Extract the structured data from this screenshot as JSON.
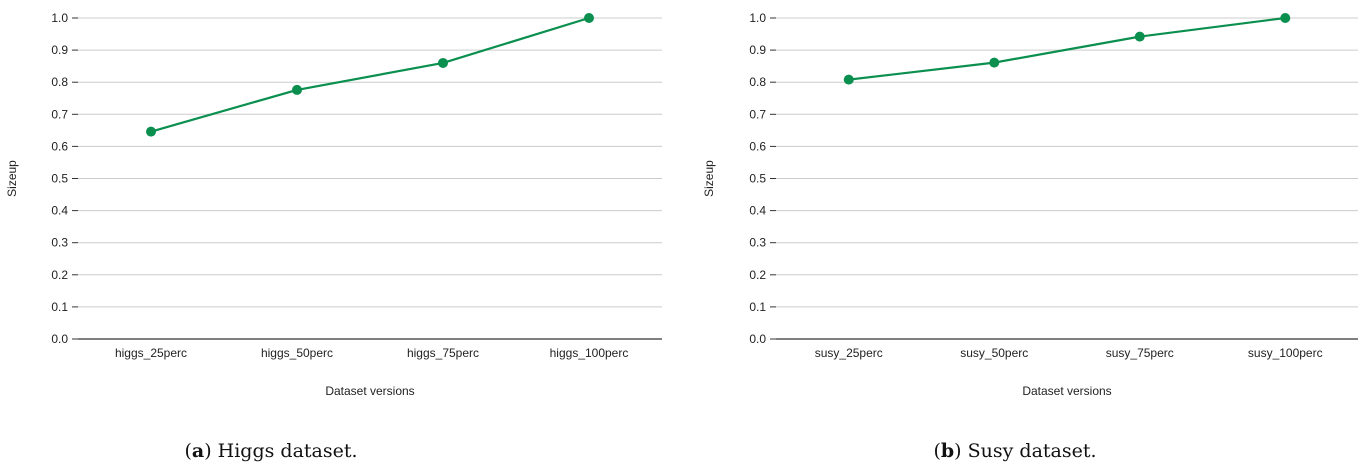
{
  "chart_data": [
    {
      "type": "line",
      "title": "",
      "xlabel": "Dataset versions",
      "ylabel": "Sizeup",
      "categories": [
        "higgs_25perc",
        "higgs_50perc",
        "higgs_75perc",
        "higgs_100perc"
      ],
      "series": [
        {
          "values": [
            0.646,
            0.776,
            0.86,
            1.0
          ]
        }
      ],
      "ylim": [
        0,
        1.0
      ],
      "yticks": [
        "0.0",
        "0.1",
        "0.2",
        "0.3",
        "0.4",
        "0.5",
        "0.6",
        "0.7",
        "0.8",
        "0.9",
        "1.0"
      ],
      "grid": true,
      "color": "#0a8f4f",
      "caption": {
        "open": "(",
        "letter": "a",
        "close": ")",
        "text": " Higgs dataset."
      }
    },
    {
      "type": "line",
      "title": "",
      "xlabel": "Dataset versions",
      "ylabel": "Sizeup",
      "categories": [
        "susy_25perc",
        "susy_50perc",
        "susy_75perc",
        "susy_100perc"
      ],
      "series": [
        {
          "values": [
            0.808,
            0.861,
            0.942,
            1.0
          ]
        }
      ],
      "ylim": [
        0,
        1.0
      ],
      "yticks": [
        "0.0",
        "0.1",
        "0.2",
        "0.3",
        "0.4",
        "0.5",
        "0.6",
        "0.7",
        "0.8",
        "0.9",
        "1.0"
      ],
      "grid": true,
      "color": "#0a8f4f",
      "caption": {
        "open": "(",
        "letter": "b",
        "close": ")",
        "text": " Susy dataset."
      }
    }
  ]
}
